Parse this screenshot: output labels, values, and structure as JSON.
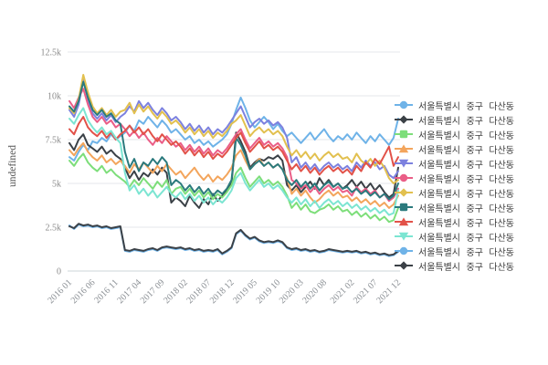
{
  "y_axis": {
    "label": "undefined",
    "tick_labels": [
      "0",
      "2.5k",
      "5k",
      "7.5k",
      "10k",
      "12.5k"
    ],
    "tick_values": [
      0,
      2500,
      5000,
      7500,
      10000,
      12500
    ]
  },
  "x_axis": {
    "tick_labels": [
      "2016 01",
      "2016 06",
      "2016 11",
      "2017 04",
      "2017 09",
      "2018 02",
      "2018 07",
      "2018 12",
      "2019 05",
      "2019 10",
      "2020 03",
      "2020 08",
      "2021 02",
      "2021 07",
      "2021 12"
    ],
    "tick_indices": [
      0,
      5,
      10,
      15,
      20,
      25,
      30,
      35,
      40,
      45,
      50,
      55,
      61,
      66,
      71
    ]
  },
  "legend": {
    "items": [
      {
        "label": "서울특별시 중구 다산동",
        "color": "#6FB3E8",
        "shape": "circle"
      },
      {
        "label": "서울특별시 중구 다산동",
        "color": "#3B4147",
        "shape": "diamond"
      },
      {
        "label": "서울특별시 중구 다산동",
        "color": "#7DDE7A",
        "shape": "square"
      },
      {
        "label": "서울특별시 중구 다산동",
        "color": "#F3A55C",
        "shape": "triangle-up"
      },
      {
        "label": "서울특별시 중구 다산동",
        "color": "#7C81DF",
        "shape": "triangle-down"
      },
      {
        "label": "서울특별시 중구 다산동",
        "color": "#EA5E87",
        "shape": "circle"
      },
      {
        "label": "서울특별시 중구 다산동",
        "color": "#E2C04F",
        "shape": "diamond"
      },
      {
        "label": "서울특별시 중구 다산동",
        "color": "#2B7A7D",
        "shape": "square"
      },
      {
        "label": "서울특별시 중구 다산동",
        "color": "#E25249",
        "shape": "triangle-up"
      },
      {
        "label": "서울특별시 중구 다산동",
        "color": "#7CE5D2",
        "shape": "triangle-down"
      },
      {
        "label": "서울특별시 중구 다산동",
        "color": "#6FB3E8",
        "shape": "circle"
      },
      {
        "label": "서울특별시 중구 다산동",
        "color": "#3B4147",
        "shape": "diamond"
      }
    ]
  },
  "chart_data": {
    "type": "line",
    "x_start": "2016 01",
    "x_end": "2021 12",
    "x_count": 72,
    "ylim": [
      0,
      12500
    ],
    "grid": true,
    "legend_position": "right",
    "series": [
      {
        "name": "서울특별시 중구 다산동",
        "color": "#6FB3E8",
        "symbol": "circle",
        "values": [
          6500,
          6300,
          6800,
          7200,
          6900,
          7400,
          7300,
          7600,
          7400,
          7800,
          7500,
          7700,
          7900,
          8300,
          8000,
          8600,
          8400,
          8800,
          8500,
          8200,
          8600,
          8300,
          7900,
          8100,
          7800,
          7500,
          7700,
          7300,
          7500,
          7200,
          7400,
          7100,
          7300,
          7500,
          7800,
          8400,
          9200,
          9900,
          9300,
          8600,
          8200,
          8500,
          8800,
          8500,
          8100,
          8400,
          8000,
          7700,
          7900,
          7600,
          7300,
          7600,
          7900,
          7500,
          7800,
          8100,
          7700,
          7400,
          7700,
          7500,
          7800,
          7500,
          7900,
          7600,
          7300,
          7700,
          7400,
          7800,
          7500,
          7200,
          7600,
          8700
        ]
      },
      {
        "name": "서울특별시 중구 다산동",
        "color": "#3B4147",
        "symbol": "diamond",
        "values": [
          7300,
          6900,
          7500,
          7800,
          7200,
          7000,
          6800,
          7100,
          6700,
          6900,
          6600,
          6400,
          5900,
          5300,
          5700,
          5200,
          5600,
          5400,
          5800,
          5500,
          5900,
          5600,
          3900,
          4200,
          4000,
          3700,
          4300,
          3900,
          3600,
          4100,
          3800,
          4400,
          4000,
          4300,
          4600,
          5000,
          7900,
          7400,
          6800,
          5900,
          6200,
          6400,
          6300,
          6500,
          6400,
          6600,
          6300,
          4900,
          4600,
          4900,
          4500,
          4800,
          5100,
          4700,
          5300,
          4900,
          5200,
          4800,
          5000,
          4700,
          4900,
          5200,
          4800,
          5100,
          4700,
          5000,
          4600,
          4900,
          4500,
          4200,
          4400,
          5900
        ]
      },
      {
        "name": "서울특별시 중구 다산동",
        "color": "#7DDE7A",
        "symbol": "square",
        "values": [
          6300,
          6000,
          6400,
          6700,
          6200,
          5900,
          5700,
          6000,
          5600,
          5800,
          5500,
          5300,
          5100,
          4800,
          5200,
          4900,
          5300,
          5000,
          4700,
          5100,
          4800,
          5200,
          4400,
          4700,
          4800,
          4400,
          4700,
          4300,
          4600,
          4200,
          4500,
          4100,
          4400,
          4200,
          4500,
          4900,
          5600,
          5900,
          5300,
          4800,
          5100,
          5400,
          5000,
          5200,
          4900,
          5100,
          4800,
          4300,
          3600,
          3900,
          3500,
          3800,
          3400,
          3300,
          3500,
          3600,
          3800,
          3500,
          3700,
          3400,
          3500,
          3200,
          3400,
          3100,
          3300,
          3000,
          3200,
          2900,
          3100,
          2800,
          2900,
          3600
        ]
      },
      {
        "name": "서울특별시 중구 다산동",
        "color": "#F3A55C",
        "symbol": "triangle-up",
        "values": [
          6900,
          6600,
          7000,
          7300,
          6800,
          6500,
          6300,
          6600,
          6200,
          6400,
          6100,
          6300,
          6000,
          5600,
          6100,
          5800,
          6200,
          5900,
          5600,
          6000,
          5700,
          6100,
          5800,
          5500,
          5700,
          5300,
          5600,
          5900,
          5500,
          5200,
          5500,
          5100,
          5400,
          5200,
          5500,
          5900,
          6600,
          6900,
          6300,
          5800,
          6100,
          6400,
          6000,
          6200,
          5900,
          6100,
          5800,
          5300,
          4400,
          4700,
          4300,
          4600,
          4200,
          3900,
          4100,
          4400,
          4600,
          4300,
          4500,
          4200,
          4300,
          4000,
          4200,
          3900,
          4100,
          3800,
          4000,
          3700,
          3900,
          3600,
          3800,
          4300
        ]
      },
      {
        "name": "서울특별시 중구 다산동",
        "color": "#7C81DF",
        "symbol": "triangle-down",
        "values": [
          9200,
          8800,
          9500,
          10900,
          9800,
          9000,
          8700,
          9000,
          8600,
          8900,
          8500,
          8800,
          9000,
          9400,
          9100,
          9700,
          9300,
          9600,
          9200,
          8900,
          9300,
          9000,
          8600,
          8800,
          8500,
          8100,
          8400,
          8000,
          8300,
          7900,
          8200,
          7800,
          8100,
          7900,
          8200,
          8600,
          9000,
          9400,
          8800,
          8200,
          8500,
          8700,
          8400,
          8600,
          8300,
          8500,
          8200,
          7600,
          6200,
          6500,
          5900,
          6200,
          5800,
          6100,
          5700,
          6000,
          6200,
          5900,
          6100,
          5800,
          6000,
          5700,
          6200,
          5900,
          6300,
          6000,
          6200,
          5800,
          6000,
          5500,
          5300,
          5700
        ]
      },
      {
        "name": "서울특별시 중구 다산동",
        "color": "#EA5E87",
        "symbol": "circle",
        "values": [
          9700,
          9300,
          9900,
          10400,
          9500,
          8800,
          8500,
          8800,
          8400,
          8600,
          8200,
          8400,
          8100,
          7700,
          8000,
          7600,
          7900,
          7500,
          7200,
          7600,
          7300,
          7700,
          7400,
          7100,
          7300,
          6900,
          7200,
          6800,
          7100,
          6700,
          7000,
          6600,
          6900,
          6700,
          7000,
          7400,
          7800,
          8100,
          7500,
          7000,
          7300,
          7600,
          7200,
          7400,
          7100,
          7300,
          7000,
          6500,
          5200,
          5000,
          4700,
          4900,
          4500,
          4800,
          4400,
          4700,
          4900,
          4600,
          4800,
          4500,
          4600,
          4300,
          4800,
          4500,
          4700,
          4400,
          4600,
          4200,
          4400,
          4000,
          4200,
          4700
        ]
      },
      {
        "name": "서울특별시 중구 다산동",
        "color": "#E2C04F",
        "symbol": "diamond",
        "values": [
          9300,
          9000,
          9800,
          11200,
          10200,
          9400,
          9000,
          9300,
          8900,
          9200,
          8800,
          9100,
          9200,
          9600,
          9000,
          9500,
          9100,
          9400,
          9000,
          8700,
          9100,
          8800,
          8400,
          8600,
          8300,
          7900,
          8200,
          7800,
          8100,
          7700,
          8000,
          7600,
          7900,
          7700,
          8000,
          8400,
          8600,
          8900,
          8300,
          7700,
          8000,
          8200,
          7900,
          8100,
          7800,
          8000,
          7700,
          7100,
          6600,
          6900,
          6500,
          6800,
          6400,
          6700,
          6300,
          6600,
          6800,
          6500,
          6700,
          6400,
          6500,
          6200,
          6700,
          6300,
          6100,
          6400,
          6000,
          6300,
          5900,
          5300,
          5000,
          5200
        ]
      },
      {
        "name": "서울특별시 중구 다산동",
        "color": "#2B7A7D",
        "symbol": "square",
        "values": [
          9400,
          9100,
          9700,
          10800,
          9900,
          9200,
          8900,
          9200,
          8800,
          9000,
          8600,
          8400,
          6800,
          5900,
          6400,
          5700,
          6200,
          6000,
          6400,
          6100,
          6500,
          6200,
          4900,
          5200,
          5000,
          4600,
          4900,
          4500,
          4800,
          4400,
          4700,
          4300,
          4600,
          4400,
          4700,
          5200,
          7600,
          7200,
          6600,
          5800,
          6100,
          6300,
          6000,
          6200,
          5900,
          6100,
          5800,
          5200,
          4900,
          5200,
          4800,
          5100,
          4700,
          5000,
          4600,
          4900,
          5100,
          4800,
          5000,
          4700,
          4800,
          4500,
          4700,
          4400,
          4600,
          4300,
          4500,
          4200,
          4400,
          4100,
          4300,
          5000
        ]
      },
      {
        "name": "서울특별시 중구 다산동",
        "color": "#E25249",
        "symbol": "triangle-up",
        "values": [
          8100,
          7800,
          8400,
          8800,
          8200,
          7900,
          7700,
          8000,
          7600,
          7900,
          7500,
          7800,
          8000,
          8300,
          7900,
          8200,
          7800,
          8100,
          7700,
          7400,
          7800,
          7500,
          7200,
          7400,
          7100,
          6700,
          7000,
          6600,
          6900,
          6500,
          6800,
          6400,
          6700,
          6500,
          6800,
          7200,
          7600,
          7900,
          7300,
          6800,
          7100,
          7400,
          7000,
          7200,
          6900,
          7100,
          6800,
          6300,
          5800,
          6100,
          5700,
          6000,
          5600,
          5900,
          5500,
          5800,
          6000,
          5700,
          5900,
          5600,
          5800,
          5500,
          6000,
          5700,
          6200,
          5900,
          6400,
          6100,
          6600,
          7100,
          6000,
          6500
        ]
      },
      {
        "name": "서울특별시 중구 다산동",
        "color": "#7CE5D2",
        "symbol": "triangle-down",
        "values": [
          8700,
          8400,
          8900,
          9300,
          8600,
          8200,
          7900,
          8200,
          7800,
          8000,
          7600,
          7300,
          5600,
          4600,
          4900,
          4400,
          4700,
          4300,
          4600,
          4200,
          4500,
          4800,
          4400,
          4200,
          4500,
          4100,
          4400,
          4000,
          4300,
          3900,
          4200,
          3800,
          4100,
          3900,
          4200,
          4600,
          5300,
          5600,
          5000,
          4600,
          4900,
          5200,
          4800,
          5000,
          4700,
          4900,
          4600,
          4200,
          3900,
          4200,
          3800,
          4100,
          3700,
          4000,
          3600,
          3900,
          4100,
          3800,
          4000,
          3700,
          3900,
          3600,
          3800,
          3500,
          3700,
          3400,
          3600,
          3300,
          3500,
          3200,
          3300,
          4600
        ]
      },
      {
        "name": "서울특별시 중구 다산동",
        "color": "#6FB3E8",
        "symbol": "circle",
        "values": [
          2600,
          2400,
          2650,
          2550,
          2600,
          2500,
          2550,
          2450,
          2500,
          2400,
          2450,
          2500,
          1150,
          1100,
          1200,
          1150,
          1100,
          1200,
          1250,
          1150,
          1300,
          1350,
          1300,
          1250,
          1300,
          1200,
          1250,
          1150,
          1200,
          1100,
          1150,
          1100,
          1200,
          950,
          1100,
          1300,
          2100,
          2300,
          2000,
          1800,
          1900,
          1700,
          1600,
          1650,
          1600,
          1700,
          1600,
          1300,
          1200,
          1250,
          1150,
          1200,
          1100,
          1150,
          1050,
          1100,
          1200,
          1150,
          1100,
          1050,
          1100,
          1050,
          1100,
          1000,
          1050,
          950,
          1000,
          900,
          950,
          850,
          900,
          1100
        ]
      },
      {
        "name": "서울특별시 중구 다산동",
        "color": "#3B4147",
        "symbol": "diamond",
        "values": [
          2550,
          2450,
          2700,
          2600,
          2650,
          2550,
          2600,
          2500,
          2550,
          2450,
          2500,
          2550,
          1200,
          1150,
          1250,
          1200,
          1150,
          1250,
          1300,
          1200,
          1350,
          1400,
          1350,
          1300,
          1350,
          1250,
          1300,
          1200,
          1250,
          1150,
          1200,
          1150,
          1250,
          1000,
          1150,
          1350,
          2150,
          2350,
          2050,
          1850,
          1950,
          1750,
          1650,
          1700,
          1650,
          1750,
          1650,
          1350,
          1250,
          1300,
          1200,
          1250,
          1150,
          1200,
          1100,
          1150,
          1250,
          1200,
          1150,
          1100,
          1150,
          1100,
          1150,
          1050,
          1100,
          1000,
          1050,
          950,
          1000,
          900,
          950,
          1150
        ]
      }
    ]
  }
}
